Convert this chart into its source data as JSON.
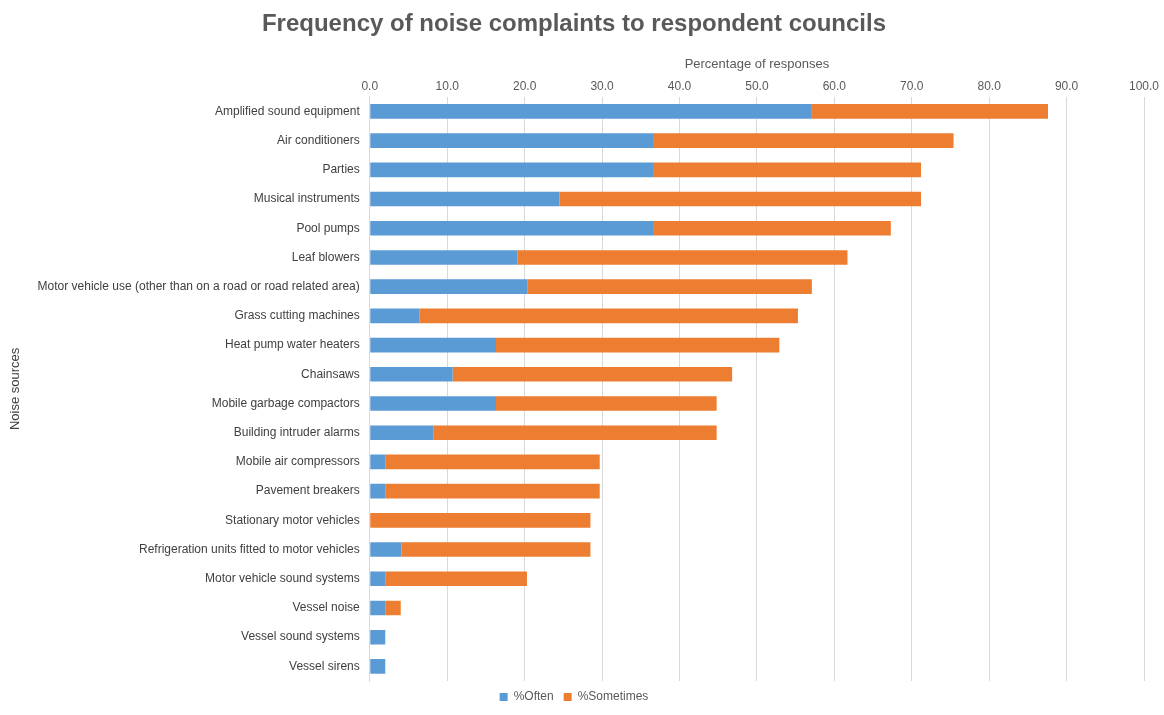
{
  "chart_data": {
    "type": "bar",
    "orientation": "horizontal",
    "stacked": true,
    "title": "Frequency of noise complaints to respondent councils",
    "xlabel": "Percentage of responses",
    "ylabel": "Noise sources",
    "categories": [
      "Amplified sound equipment",
      "Air conditioners",
      "Parties",
      "Musical instruments",
      "Pool pumps",
      "Leaf blowers",
      "Motor vehicle use (other than on a road or road related area)",
      "Grass cutting machines",
      "Heat pump water heaters",
      "Chainsaws",
      "Mobile garbage compactors",
      "Building intruder alarms",
      "Mobile air compressors",
      "Pavement breakers",
      "Stationary motor vehicles",
      "Refrigeration units fitted to motor vehicles",
      "Motor vehicle sound systems",
      "Vessel noise",
      "Vessel sound systems",
      "Vessel sirens"
    ],
    "series": [
      {
        "name": "%Often",
        "color": "#5b9bd5",
        "values": [
          57.1,
          36.7,
          36.7,
          24.5,
          36.7,
          19.1,
          20.4,
          6.4,
          16.3,
          10.7,
          16.3,
          8.2,
          2.0,
          2.0,
          0,
          4.1,
          2.0,
          2.0,
          2.0,
          2.0
        ]
      },
      {
        "name": "%Sometimes",
        "color": "#ed7d31",
        "values": [
          30.5,
          38.7,
          34.5,
          46.7,
          30.6,
          42.6,
          36.7,
          48.9,
          36.6,
          36.1,
          28.5,
          36.6,
          27.7,
          27.7,
          28.5,
          24.4,
          18.3,
          2.0,
          0,
          0
        ]
      }
    ],
    "xlim": [
      0,
      100
    ],
    "xticks": [
      {
        "value": 0,
        "label": "0.0"
      },
      {
        "value": 10,
        "label": "10.0"
      },
      {
        "value": 20,
        "label": "20.0"
      },
      {
        "value": 30,
        "label": "30.0"
      },
      {
        "value": 40,
        "label": "40.0"
      },
      {
        "value": 50,
        "label": "50.0"
      },
      {
        "value": 60,
        "label": "60.0"
      },
      {
        "value": 70,
        "label": "70.0"
      },
      {
        "value": 80,
        "label": "80.0"
      },
      {
        "value": 90,
        "label": "90.0"
      },
      {
        "value": 100,
        "label": "100.0"
      }
    ],
    "grid": "x",
    "legend": "bottom"
  }
}
